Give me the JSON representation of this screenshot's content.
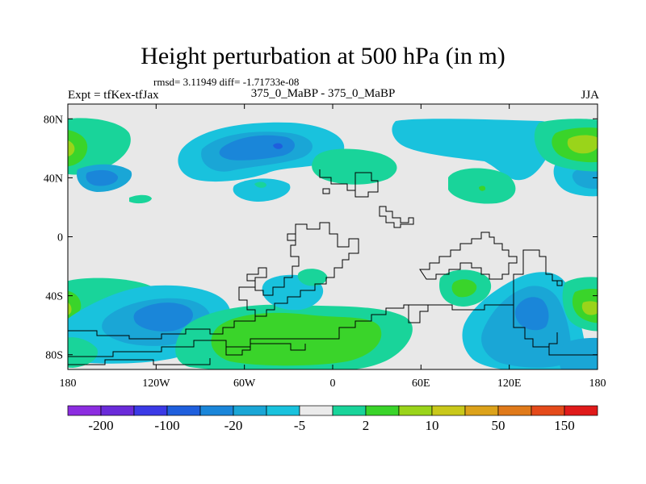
{
  "title": "Height perturbation at 500 hPa (in m)",
  "stats": "rmsd= 3.11949 diff= -1.71733e-08",
  "experiment": "Expt = tfKex-tfJax",
  "center_label": "375_0_MaBP - 375_0_MaBP",
  "season": "JJA",
  "map": {
    "projection": "cylindrical equidistant",
    "lon_range": [
      -180,
      180
    ],
    "lat_range": [
      -90,
      90
    ],
    "lat_ticks": [
      {
        "value": 80,
        "label": "80N"
      },
      {
        "value": 40,
        "label": "40N"
      },
      {
        "value": 0,
        "label": "0"
      },
      {
        "value": -40,
        "label": "40S"
      },
      {
        "value": -80,
        "label": "80S"
      }
    ],
    "lon_ticks": [
      {
        "value": -180,
        "label": "180"
      },
      {
        "value": -120,
        "label": "120W"
      },
      {
        "value": -60,
        "label": "60W"
      },
      {
        "value": 0,
        "label": "0"
      },
      {
        "value": 60,
        "label": "60E"
      },
      {
        "value": 120,
        "label": "120E"
      },
      {
        "value": 180,
        "label": "180"
      }
    ],
    "background_color": "#e8e8e8",
    "outline_color": "#000000"
  },
  "colorbar": {
    "colors": [
      "#8c2de0",
      "#6a2bd9",
      "#3b3ae6",
      "#1f5fdd",
      "#1a86d9",
      "#1aa6d6",
      "#19c2dd",
      "#ebebeb",
      "#19d49a",
      "#3ad42a",
      "#9ad41a",
      "#c9c81a",
      "#dca21a",
      "#e07a1a",
      "#e44a1a",
      "#e01a1a"
    ],
    "labels": [
      {
        "boundary": 1,
        "text": "-200"
      },
      {
        "boundary": 3,
        "text": "-100"
      },
      {
        "boundary": 5,
        "text": "-20"
      },
      {
        "boundary": 7,
        "text": "-5"
      },
      {
        "boundary": 9,
        "text": "2"
      },
      {
        "boundary": 11,
        "text": "10"
      },
      {
        "boundary": 13,
        "text": "50"
      },
      {
        "boundary": 15,
        "text": "150"
      }
    ]
  }
}
